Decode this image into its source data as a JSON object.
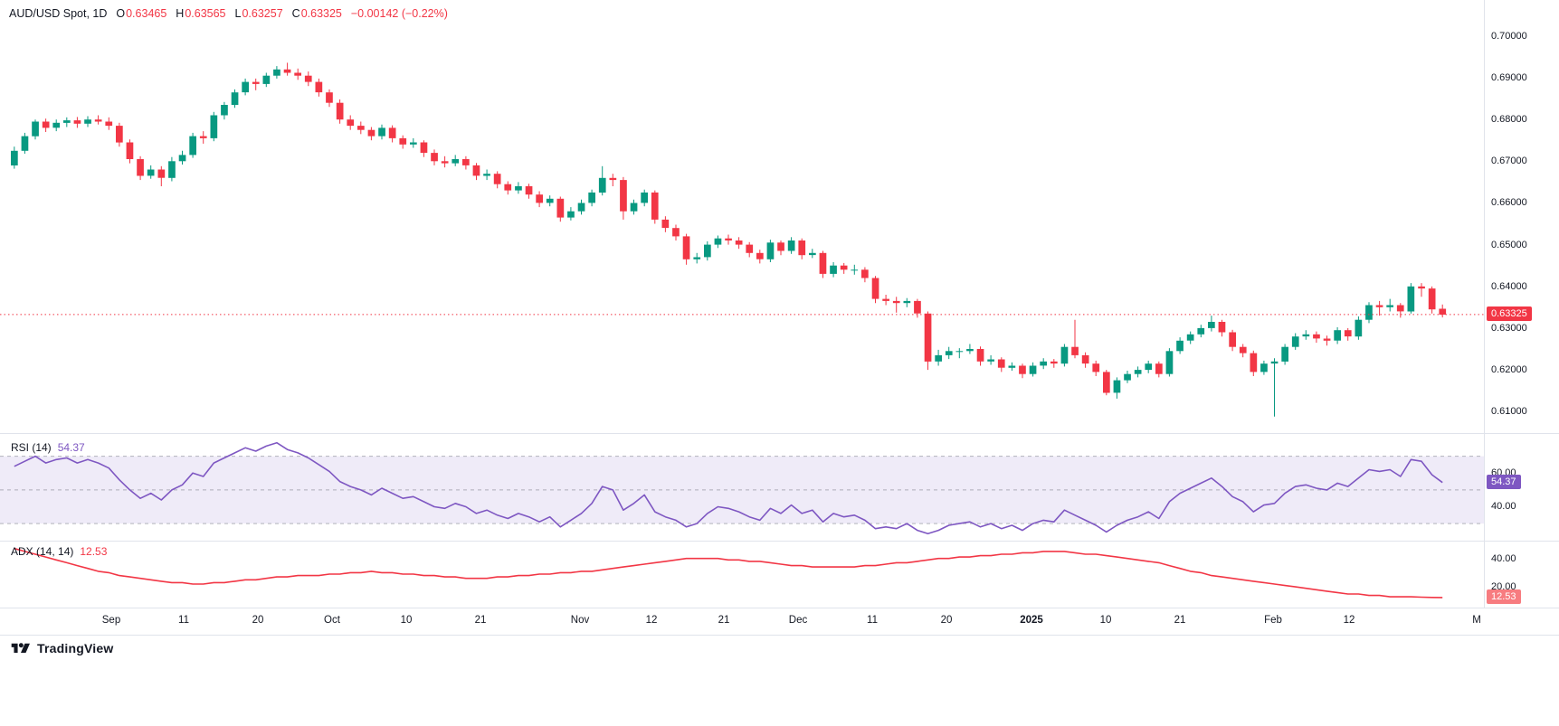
{
  "header": {
    "symbol": "AUD/USD Spot, 1D",
    "o_label": "O",
    "o": "0.63465",
    "h_label": "H",
    "h": "0.63565",
    "l_label": "L",
    "l": "0.63257",
    "c_label": "C",
    "c": "0.63325",
    "change": "−0.00142 (−0.22%)"
  },
  "price_axis": {
    "ticks": [
      "0.70000",
      "0.69000",
      "0.68000",
      "0.67000",
      "0.66000",
      "0.65000",
      "0.64000",
      "0.63000",
      "0.62000",
      "0.61000"
    ],
    "badge": "0.63325"
  },
  "rsi": {
    "label": "RSI (14)",
    "value": "54.37",
    "ticks": [
      "60.00",
      "40.00"
    ],
    "badge": "54.37"
  },
  "adx": {
    "label": "ADX (14, 14)",
    "value": "12.53",
    "ticks": [
      "40.00",
      "20.00"
    ],
    "badge": "12.53"
  },
  "time_axis": {
    "labels": [
      {
        "text": "Sep",
        "pos": 0.075
      },
      {
        "text": "11",
        "pos": 0.124
      },
      {
        "text": "20",
        "pos": 0.174
      },
      {
        "text": "Oct",
        "pos": 0.224
      },
      {
        "text": "10",
        "pos": 0.274
      },
      {
        "text": "21",
        "pos": 0.324
      },
      {
        "text": "Nov",
        "pos": 0.391
      },
      {
        "text": "12",
        "pos": 0.439
      },
      {
        "text": "21",
        "pos": 0.488
      },
      {
        "text": "Dec",
        "pos": 0.538
      },
      {
        "text": "11",
        "pos": 0.588
      },
      {
        "text": "20",
        "pos": 0.638
      },
      {
        "text": "2025",
        "pos": 0.695,
        "bold": true
      },
      {
        "text": "10",
        "pos": 0.745
      },
      {
        "text": "21",
        "pos": 0.795
      },
      {
        "text": "Feb",
        "pos": 0.858
      },
      {
        "text": "12",
        "pos": 0.909
      },
      {
        "text": "M",
        "pos": 0.995
      }
    ]
  },
  "footer": {
    "brand": "TradingView"
  },
  "colors": {
    "up": "#089981",
    "down": "#F23645",
    "rsi": "#7E57C2",
    "rsi_band": "rgba(126,87,194,0.12)",
    "band_line": "#787B86",
    "adx": "#F23645",
    "adx_badge_bg": "#F77C80",
    "axis_text": "#131722",
    "grid": "#E0E3EB"
  },
  "chart_data": {
    "type": "candlestick",
    "title": "AUD/USD Spot, 1D",
    "symbol": "AUD/USD Spot",
    "interval": "1D",
    "last_price": 0.63325,
    "last_change": -0.00142,
    "last_change_pct": -0.22,
    "price_range": [
      0.6055,
      0.703
    ],
    "price_ticks": [
      0.7,
      0.69,
      0.68,
      0.67,
      0.66,
      0.65,
      0.64,
      0.63,
      0.62,
      0.61
    ],
    "candles_ohlc": [
      [
        0.669,
        0.6735,
        0.6682,
        0.6725
      ],
      [
        0.6725,
        0.6768,
        0.6718,
        0.676
      ],
      [
        0.676,
        0.68,
        0.6752,
        0.6795
      ],
      [
        0.6795,
        0.6802,
        0.677,
        0.678
      ],
      [
        0.678,
        0.68,
        0.6772,
        0.6792
      ],
      [
        0.6792,
        0.6805,
        0.6782,
        0.6798
      ],
      [
        0.6798,
        0.6806,
        0.678,
        0.679
      ],
      [
        0.679,
        0.6808,
        0.6782,
        0.68
      ],
      [
        0.68,
        0.681,
        0.6788,
        0.6795
      ],
      [
        0.6795,
        0.6805,
        0.6775,
        0.6785
      ],
      [
        0.6785,
        0.6792,
        0.6735,
        0.6745
      ],
      [
        0.6745,
        0.6752,
        0.6695,
        0.6705
      ],
      [
        0.6705,
        0.6712,
        0.6655,
        0.6665
      ],
      [
        0.6665,
        0.669,
        0.6658,
        0.668
      ],
      [
        0.668,
        0.6688,
        0.664,
        0.666
      ],
      [
        0.666,
        0.671,
        0.6652,
        0.67
      ],
      [
        0.67,
        0.6725,
        0.6692,
        0.6715
      ],
      [
        0.6715,
        0.6768,
        0.6708,
        0.676
      ],
      [
        0.676,
        0.6772,
        0.6742,
        0.6755
      ],
      [
        0.6755,
        0.6818,
        0.6748,
        0.681
      ],
      [
        0.681,
        0.6842,
        0.68,
        0.6835
      ],
      [
        0.6835,
        0.6872,
        0.6828,
        0.6865
      ],
      [
        0.6865,
        0.6898,
        0.6858,
        0.689
      ],
      [
        0.689,
        0.6898,
        0.687,
        0.6885
      ],
      [
        0.6885,
        0.6912,
        0.6878,
        0.6905
      ],
      [
        0.6905,
        0.6928,
        0.6898,
        0.692
      ],
      [
        0.692,
        0.6936,
        0.6905,
        0.6912
      ],
      [
        0.6912,
        0.6922,
        0.6895,
        0.6905
      ],
      [
        0.6905,
        0.6915,
        0.688,
        0.689
      ],
      [
        0.689,
        0.6898,
        0.6855,
        0.6865
      ],
      [
        0.6865,
        0.6872,
        0.683,
        0.684
      ],
      [
        0.684,
        0.6848,
        0.679,
        0.68
      ],
      [
        0.68,
        0.681,
        0.6775,
        0.6785
      ],
      [
        0.6785,
        0.6795,
        0.6765,
        0.6775
      ],
      [
        0.6775,
        0.6782,
        0.675,
        0.676
      ],
      [
        0.676,
        0.6788,
        0.6752,
        0.678
      ],
      [
        0.678,
        0.6786,
        0.6745,
        0.6755
      ],
      [
        0.6755,
        0.6762,
        0.673,
        0.674
      ],
      [
        0.674,
        0.6755,
        0.6732,
        0.6745
      ],
      [
        0.6745,
        0.675,
        0.671,
        0.672
      ],
      [
        0.672,
        0.6728,
        0.669,
        0.67
      ],
      [
        0.67,
        0.6712,
        0.6685,
        0.6695
      ],
      [
        0.6695,
        0.6715,
        0.6688,
        0.6705
      ],
      [
        0.6705,
        0.6712,
        0.668,
        0.669
      ],
      [
        0.669,
        0.6696,
        0.6655,
        0.6665
      ],
      [
        0.6665,
        0.668,
        0.6655,
        0.667
      ],
      [
        0.667,
        0.6676,
        0.6635,
        0.6645
      ],
      [
        0.6645,
        0.6652,
        0.662,
        0.663
      ],
      [
        0.663,
        0.665,
        0.6622,
        0.664
      ],
      [
        0.664,
        0.6646,
        0.661,
        0.662
      ],
      [
        0.662,
        0.6628,
        0.659,
        0.66
      ],
      [
        0.66,
        0.6618,
        0.6592,
        0.661
      ],
      [
        0.661,
        0.6615,
        0.6555,
        0.6565
      ],
      [
        0.6565,
        0.659,
        0.6558,
        0.658
      ],
      [
        0.658,
        0.6608,
        0.6572,
        0.66
      ],
      [
        0.66,
        0.6632,
        0.6592,
        0.6625
      ],
      [
        0.6625,
        0.6688,
        0.6618,
        0.666
      ],
      [
        0.666,
        0.667,
        0.664,
        0.6655
      ],
      [
        0.6655,
        0.6662,
        0.656,
        0.658
      ],
      [
        0.658,
        0.6608,
        0.6572,
        0.66
      ],
      [
        0.66,
        0.6632,
        0.6592,
        0.6625
      ],
      [
        0.6625,
        0.663,
        0.655,
        0.656
      ],
      [
        0.656,
        0.6568,
        0.653,
        0.654
      ],
      [
        0.654,
        0.6548,
        0.651,
        0.652
      ],
      [
        0.652,
        0.6526,
        0.6452,
        0.6465
      ],
      [
        0.6465,
        0.648,
        0.6455,
        0.647
      ],
      [
        0.647,
        0.6508,
        0.6462,
        0.65
      ],
      [
        0.65,
        0.6522,
        0.6492,
        0.6515
      ],
      [
        0.6515,
        0.6524,
        0.65,
        0.651
      ],
      [
        0.651,
        0.6518,
        0.649,
        0.65
      ],
      [
        0.65,
        0.6506,
        0.647,
        0.648
      ],
      [
        0.648,
        0.6488,
        0.6455,
        0.6465
      ],
      [
        0.6465,
        0.6512,
        0.6458,
        0.6505
      ],
      [
        0.6505,
        0.651,
        0.6475,
        0.6485
      ],
      [
        0.6485,
        0.6518,
        0.6478,
        0.651
      ],
      [
        0.651,
        0.6515,
        0.6465,
        0.6475
      ],
      [
        0.6475,
        0.649,
        0.6468,
        0.648
      ],
      [
        0.648,
        0.6485,
        0.642,
        0.643
      ],
      [
        0.643,
        0.6458,
        0.6422,
        0.645
      ],
      [
        0.645,
        0.6456,
        0.643,
        0.644
      ],
      [
        0.644,
        0.6452,
        0.6428,
        0.644
      ],
      [
        0.644,
        0.6446,
        0.641,
        0.642
      ],
      [
        0.642,
        0.6425,
        0.636,
        0.637
      ],
      [
        0.637,
        0.638,
        0.6355,
        0.6365
      ],
      [
        0.6365,
        0.6375,
        0.6337,
        0.636
      ],
      [
        0.636,
        0.6372,
        0.635,
        0.6365
      ],
      [
        0.6365,
        0.637,
        0.6325,
        0.6335
      ],
      [
        0.6335,
        0.634,
        0.62,
        0.622
      ],
      [
        0.622,
        0.6248,
        0.621,
        0.6235
      ],
      [
        0.6235,
        0.6255,
        0.6226,
        0.6245
      ],
      [
        0.6245,
        0.6252,
        0.6228,
        0.6245
      ],
      [
        0.6245,
        0.6262,
        0.6238,
        0.625
      ],
      [
        0.625,
        0.6256,
        0.621,
        0.622
      ],
      [
        0.622,
        0.6235,
        0.6212,
        0.6225
      ],
      [
        0.6225,
        0.623,
        0.6195,
        0.6205
      ],
      [
        0.6205,
        0.6218,
        0.6198,
        0.621
      ],
      [
        0.621,
        0.6215,
        0.618,
        0.619
      ],
      [
        0.619,
        0.6218,
        0.6184,
        0.621
      ],
      [
        0.621,
        0.6228,
        0.6202,
        0.622
      ],
      [
        0.622,
        0.6226,
        0.6205,
        0.6215
      ],
      [
        0.6215,
        0.6262,
        0.6208,
        0.6255
      ],
      [
        0.6255,
        0.632,
        0.6228,
        0.6235
      ],
      [
        0.6235,
        0.6242,
        0.6205,
        0.6215
      ],
      [
        0.6215,
        0.6222,
        0.6185,
        0.6195
      ],
      [
        0.6195,
        0.62,
        0.6139,
        0.6145
      ],
      [
        0.6145,
        0.6182,
        0.6131,
        0.6175
      ],
      [
        0.6175,
        0.6198,
        0.6168,
        0.619
      ],
      [
        0.619,
        0.6208,
        0.6182,
        0.62
      ],
      [
        0.62,
        0.6222,
        0.6192,
        0.6215
      ],
      [
        0.6215,
        0.622,
        0.6182,
        0.619
      ],
      [
        0.619,
        0.6252,
        0.6184,
        0.6245
      ],
      [
        0.6245,
        0.6278,
        0.6238,
        0.627
      ],
      [
        0.627,
        0.6292,
        0.6262,
        0.6285
      ],
      [
        0.6285,
        0.6308,
        0.6278,
        0.63
      ],
      [
        0.63,
        0.633,
        0.6292,
        0.6315
      ],
      [
        0.6315,
        0.632,
        0.628,
        0.629
      ],
      [
        0.629,
        0.6296,
        0.6245,
        0.6255
      ],
      [
        0.6255,
        0.6262,
        0.623,
        0.624
      ],
      [
        0.624,
        0.6246,
        0.6185,
        0.6195
      ],
      [
        0.6195,
        0.6222,
        0.6188,
        0.6215
      ],
      [
        0.6215,
        0.6228,
        0.6088,
        0.622
      ],
      [
        0.622,
        0.6262,
        0.6212,
        0.6255
      ],
      [
        0.6255,
        0.6288,
        0.6248,
        0.628
      ],
      [
        0.628,
        0.6295,
        0.6272,
        0.6285
      ],
      [
        0.6285,
        0.6292,
        0.6265,
        0.6275
      ],
      [
        0.6275,
        0.6282,
        0.6258,
        0.627
      ],
      [
        0.627,
        0.6302,
        0.6262,
        0.6295
      ],
      [
        0.6295,
        0.63,
        0.627,
        0.628
      ],
      [
        0.628,
        0.6328,
        0.6272,
        0.632
      ],
      [
        0.632,
        0.6362,
        0.6312,
        0.6355
      ],
      [
        0.6355,
        0.6365,
        0.633,
        0.635
      ],
      [
        0.635,
        0.637,
        0.634,
        0.6355
      ],
      [
        0.6355,
        0.636,
        0.6325,
        0.634
      ],
      [
        0.634,
        0.6408,
        0.6335,
        0.64
      ],
      [
        0.64,
        0.6408,
        0.6375,
        0.6395
      ],
      [
        0.6395,
        0.64,
        0.6335,
        0.6345
      ],
      [
        0.63465,
        0.63565,
        0.63257,
        0.63325
      ]
    ],
    "indicators": [
      {
        "name": "RSI",
        "params": [
          14
        ],
        "last": 54.37,
        "range": [
          22,
          80
        ],
        "bands": [
          70,
          50,
          30
        ],
        "values": [
          64,
          67,
          70,
          66,
          68,
          69,
          66,
          68,
          66,
          63,
          56,
          50,
          45,
          48,
          44,
          50,
          53,
          60,
          58,
          66,
          69,
          72,
          75,
          73,
          76,
          78,
          74,
          72,
          69,
          65,
          61,
          55,
          52,
          50,
          47,
          51,
          48,
          45,
          46,
          43,
          40,
          39,
          42,
          40,
          36,
          38,
          35,
          33,
          36,
          34,
          31,
          34,
          28,
          32,
          36,
          42,
          52,
          50,
          38,
          42,
          47,
          37,
          34,
          32,
          28,
          30,
          36,
          40,
          39,
          37,
          34,
          32,
          39,
          36,
          41,
          36,
          38,
          31,
          36,
          34,
          35,
          32,
          27,
          28,
          27,
          30,
          26,
          24,
          26,
          29,
          30,
          31,
          28,
          30,
          27,
          29,
          26,
          30,
          32,
          31,
          38,
          35,
          32,
          29,
          25,
          29,
          32,
          34,
          37,
          33,
          43,
          48,
          51,
          54,
          57,
          52,
          46,
          43,
          37,
          41,
          42,
          48,
          52,
          53,
          51,
          50,
          54,
          52,
          57,
          62,
          61,
          62,
          58,
          68,
          67,
          59,
          54.37
        ]
      },
      {
        "name": "ADX",
        "params": [
          14,
          14
        ],
        "last": 12.53,
        "range": [
          8,
          50
        ],
        "values": [
          47,
          45,
          43,
          41,
          39,
          37,
          35,
          33,
          31,
          30,
          28,
          27,
          26,
          25,
          24,
          23,
          23,
          22,
          22,
          23,
          23,
          24,
          25,
          25,
          26,
          27,
          27,
          28,
          28,
          28,
          29,
          29,
          30,
          30,
          31,
          30,
          30,
          29,
          29,
          28,
          28,
          27,
          27,
          26,
          26,
          26,
          27,
          27,
          28,
          28,
          29,
          29,
          30,
          30,
          31,
          31,
          32,
          33,
          34,
          35,
          36,
          37,
          38,
          39,
          40,
          40,
          40,
          40,
          39,
          39,
          38,
          38,
          37,
          36,
          35,
          35,
          34,
          34,
          34,
          34,
          34,
          35,
          35,
          36,
          37,
          37,
          38,
          39,
          40,
          40,
          41,
          41,
          42,
          42,
          43,
          43,
          44,
          44,
          45,
          45,
          45,
          44,
          43,
          43,
          42,
          41,
          40,
          39,
          38,
          37,
          35,
          33,
          31,
          30,
          28,
          27,
          26,
          25,
          24,
          23,
          22,
          21,
          20,
          19,
          18,
          17,
          16,
          15,
          15,
          14,
          14,
          13,
          13,
          13,
          12.8,
          12.6,
          12.53
        ]
      }
    ]
  }
}
